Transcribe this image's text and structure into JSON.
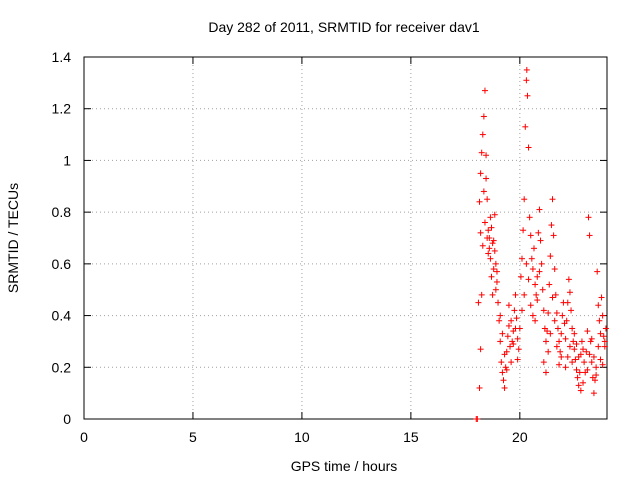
{
  "chart_data": {
    "type": "scatter",
    "title": "Day 282 of 2011, SRMTID for receiver dav1",
    "xlabel": "GPS time / hours",
    "ylabel": "SRMTID / TECUs",
    "xlim": [
      0,
      24
    ],
    "ylim": [
      0,
      1.4
    ],
    "xticks": [
      0,
      5,
      10,
      15,
      20
    ],
    "yticks": [
      0,
      0.2,
      0.4,
      0.6,
      0.8,
      1,
      1.2,
      1.4
    ],
    "grid": true,
    "marker": "+",
    "color": "#ff0000",
    "series": [
      {
        "name": "dav1",
        "points": [
          [
            18.0,
            0.0
          ],
          [
            18.05,
            0.0
          ],
          [
            18.1,
            0.45
          ],
          [
            18.15,
            0.12
          ],
          [
            18.2,
            0.27
          ],
          [
            18.25,
            0.48
          ],
          [
            18.15,
            0.84
          ],
          [
            18.2,
            0.95
          ],
          [
            18.25,
            1.03
          ],
          [
            18.3,
            1.1
          ],
          [
            18.35,
            1.17
          ],
          [
            18.4,
            1.27
          ],
          [
            18.45,
            1.02
          ],
          [
            18.5,
            0.85
          ],
          [
            18.55,
            0.73
          ],
          [
            18.6,
            0.7
          ],
          [
            18.65,
            0.62
          ],
          [
            18.7,
            0.55
          ],
          [
            18.75,
            0.48
          ],
          [
            18.8,
            0.69
          ],
          [
            18.85,
            0.79
          ],
          [
            18.9,
            0.6
          ],
          [
            18.95,
            0.53
          ],
          [
            18.2,
            0.72
          ],
          [
            18.3,
            0.67
          ],
          [
            18.4,
            0.76
          ],
          [
            18.5,
            0.7
          ],
          [
            18.6,
            0.66
          ],
          [
            18.7,
            0.74
          ],
          [
            18.8,
            0.58
          ],
          [
            18.9,
            0.5
          ],
          [
            18.35,
            0.88
          ],
          [
            18.45,
            0.93
          ],
          [
            18.55,
            0.64
          ],
          [
            18.65,
            0.78
          ],
          [
            18.75,
            0.68
          ],
          [
            18.85,
            0.65
          ],
          [
            18.95,
            0.57
          ],
          [
            19.0,
            0.45
          ],
          [
            19.05,
            0.38
          ],
          [
            19.1,
            0.3
          ],
          [
            19.15,
            0.22
          ],
          [
            19.2,
            0.18
          ],
          [
            19.25,
            0.15
          ],
          [
            19.3,
            0.12
          ],
          [
            19.35,
            0.2
          ],
          [
            19.4,
            0.26
          ],
          [
            19.45,
            0.32
          ],
          [
            19.5,
            0.36
          ],
          [
            19.55,
            0.28
          ],
          [
            19.6,
            0.22
          ],
          [
            19.65,
            0.3
          ],
          [
            19.7,
            0.34
          ],
          [
            19.75,
            0.42
          ],
          [
            19.8,
            0.48
          ],
          [
            19.85,
            0.39
          ],
          [
            19.9,
            0.31
          ],
          [
            19.95,
            0.27
          ],
          [
            19.1,
            0.4
          ],
          [
            19.2,
            0.33
          ],
          [
            19.3,
            0.25
          ],
          [
            19.4,
            0.19
          ],
          [
            19.5,
            0.44
          ],
          [
            19.6,
            0.38
          ],
          [
            19.7,
            0.29
          ],
          [
            19.8,
            0.35
          ],
          [
            19.9,
            0.23
          ],
          [
            20.0,
            0.35
          ],
          [
            20.05,
            0.55
          ],
          [
            20.1,
            0.62
          ],
          [
            20.15,
            0.73
          ],
          [
            20.2,
            0.85
          ],
          [
            20.25,
            1.13
          ],
          [
            20.3,
            1.31
          ],
          [
            20.32,
            1.35
          ],
          [
            20.35,
            1.25
          ],
          [
            20.4,
            1.05
          ],
          [
            20.45,
            0.78
          ],
          [
            20.5,
            0.71
          ],
          [
            20.55,
            0.62
          ],
          [
            20.6,
            0.58
          ],
          [
            20.65,
            0.66
          ],
          [
            20.7,
            0.52
          ],
          [
            20.75,
            0.48
          ],
          [
            20.8,
            0.55
          ],
          [
            20.85,
            0.72
          ],
          [
            20.9,
            0.81
          ],
          [
            20.95,
            0.69
          ],
          [
            20.1,
            0.42
          ],
          [
            20.2,
            0.48
          ],
          [
            20.3,
            0.6
          ],
          [
            20.4,
            0.54
          ],
          [
            20.5,
            0.44
          ],
          [
            20.6,
            0.4
          ],
          [
            20.7,
            0.38
          ],
          [
            20.8,
            0.46
          ],
          [
            20.9,
            0.57
          ],
          [
            21.0,
            0.6
          ],
          [
            21.05,
            0.5
          ],
          [
            21.1,
            0.42
          ],
          [
            21.15,
            0.35
          ],
          [
            21.2,
            0.3
          ],
          [
            21.25,
            0.34
          ],
          [
            21.3,
            0.41
          ],
          [
            21.35,
            0.52
          ],
          [
            21.4,
            0.63
          ],
          [
            21.45,
            0.75
          ],
          [
            21.5,
            0.85
          ],
          [
            21.55,
            0.71
          ],
          [
            21.6,
            0.58
          ],
          [
            21.65,
            0.48
          ],
          [
            21.7,
            0.41
          ],
          [
            21.75,
            0.35
          ],
          [
            21.8,
            0.3
          ],
          [
            21.85,
            0.26
          ],
          [
            21.9,
            0.33
          ],
          [
            21.95,
            0.4
          ],
          [
            21.1,
            0.22
          ],
          [
            21.2,
            0.18
          ],
          [
            21.3,
            0.26
          ],
          [
            21.4,
            0.33
          ],
          [
            21.5,
            0.47
          ],
          [
            21.6,
            0.38
          ],
          [
            21.7,
            0.28
          ],
          [
            21.8,
            0.21
          ],
          [
            21.9,
            0.24
          ],
          [
            22.0,
            0.45
          ],
          [
            22.05,
            0.37
          ],
          [
            22.1,
            0.31
          ],
          [
            22.15,
            0.38
          ],
          [
            22.2,
            0.45
          ],
          [
            22.25,
            0.54
          ],
          [
            22.3,
            0.49
          ],
          [
            22.35,
            0.42
          ],
          [
            22.4,
            0.35
          ],
          [
            22.45,
            0.3
          ],
          [
            22.5,
            0.27
          ],
          [
            22.55,
            0.23
          ],
          [
            22.6,
            0.19
          ],
          [
            22.65,
            0.16
          ],
          [
            22.7,
            0.13
          ],
          [
            22.75,
            0.18
          ],
          [
            22.8,
            0.25
          ],
          [
            22.85,
            0.3
          ],
          [
            22.9,
            0.27
          ],
          [
            22.95,
            0.22
          ],
          [
            22.1,
            0.2
          ],
          [
            22.2,
            0.24
          ],
          [
            22.3,
            0.28
          ],
          [
            22.4,
            0.22
          ],
          [
            22.5,
            0.33
          ],
          [
            22.6,
            0.29
          ],
          [
            22.7,
            0.24
          ],
          [
            22.8,
            0.11
          ],
          [
            22.9,
            0.14
          ],
          [
            23.0,
            0.18
          ],
          [
            23.05,
            0.26
          ],
          [
            23.1,
            0.34
          ],
          [
            23.15,
            0.78
          ],
          [
            23.2,
            0.71
          ],
          [
            23.25,
            0.3
          ],
          [
            23.3,
            0.22
          ],
          [
            23.35,
            0.16
          ],
          [
            23.4,
            0.1
          ],
          [
            23.45,
            0.15
          ],
          [
            23.5,
            0.2
          ],
          [
            23.55,
            0.57
          ],
          [
            23.6,
            0.44
          ],
          [
            23.65,
            0.38
          ],
          [
            23.7,
            0.33
          ],
          [
            23.75,
            0.47
          ],
          [
            23.8,
            0.4
          ],
          [
            23.85,
            0.32
          ],
          [
            23.9,
            0.28
          ],
          [
            23.95,
            0.35
          ],
          [
            23.1,
            0.19
          ],
          [
            23.2,
            0.25
          ],
          [
            23.3,
            0.31
          ],
          [
            23.4,
            0.24
          ],
          [
            23.5,
            0.17
          ],
          [
            23.6,
            0.28
          ],
          [
            23.7,
            0.23
          ],
          [
            23.8,
            0.21
          ],
          [
            23.9,
            0.3
          ]
        ]
      }
    ]
  }
}
